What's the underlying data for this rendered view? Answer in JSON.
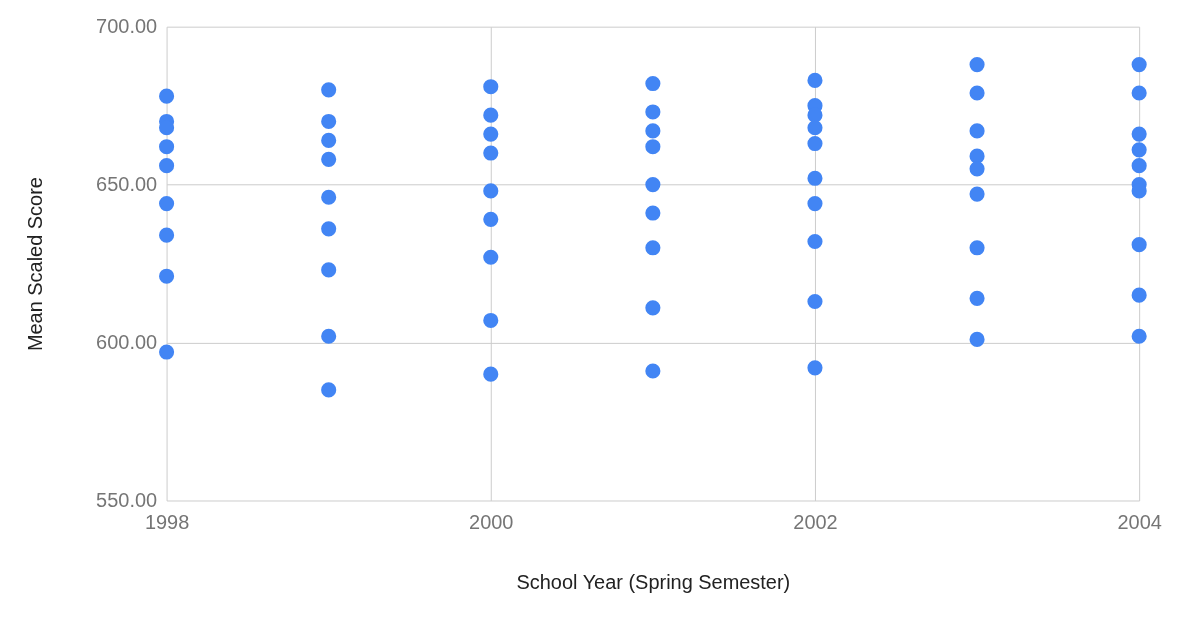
{
  "chart_data": {
    "type": "scatter",
    "xlabel": "School Year (Spring Semester)",
    "ylabel": "Mean Scaled Score",
    "x": [
      1998,
      1998,
      1998,
      1998,
      1998,
      1998,
      1998,
      1998,
      1998,
      1999,
      1999,
      1999,
      1999,
      1999,
      1999,
      1999,
      1999,
      1999,
      2000,
      2000,
      2000,
      2000,
      2000,
      2000,
      2000,
      2000,
      2000,
      2001,
      2001,
      2001,
      2001,
      2001,
      2001,
      2001,
      2001,
      2001,
      2002,
      2002,
      2002,
      2002,
      2002,
      2002,
      2002,
      2002,
      2002,
      2002,
      2003,
      2003,
      2003,
      2003,
      2003,
      2003,
      2003,
      2003,
      2003,
      2004,
      2004,
      2004,
      2004,
      2004,
      2004,
      2004,
      2004,
      2004,
      2004
    ],
    "values": [
      678,
      670,
      668,
      662,
      656,
      644,
      634,
      621,
      597,
      680,
      670,
      664,
      658,
      646,
      636,
      623,
      602,
      585,
      681,
      672,
      666,
      660,
      648,
      639,
      627,
      607,
      590,
      682,
      673,
      667,
      662,
      650,
      641,
      630,
      611,
      591,
      683,
      675,
      672,
      668,
      663,
      652,
      644,
      632,
      613,
      592,
      688,
      679,
      667,
      659,
      655,
      647,
      630,
      614,
      601,
      688,
      679,
      666,
      661,
      656,
      650,
      648,
      631,
      615,
      602
    ],
    "color": "#4285f4",
    "marker": "circle",
    "grid": true,
    "xlim": [
      1998,
      2004
    ],
    "xticks": [
      1998,
      2000,
      2002,
      2004
    ],
    "ylim": [
      550,
      700
    ],
    "yticks": [
      {
        "value": 550,
        "label": "550.00"
      },
      {
        "value": 600,
        "label": "600.00"
      },
      {
        "value": 650,
        "label": "650.00"
      },
      {
        "value": 700,
        "label": "700.00"
      }
    ]
  }
}
